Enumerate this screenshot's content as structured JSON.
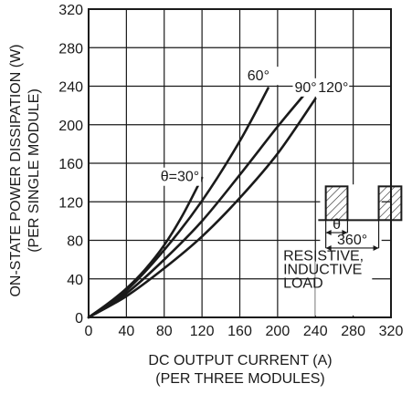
{
  "chart_data": {
    "type": "line",
    "title": "",
    "xlabel": "DC OUTPUT CURRENT (A)",
    "xlabel_sub": "(PER THREE MODULES)",
    "ylabel": "ON-STATE POWER DISSIPATION (W)",
    "ylabel_sub": "(PER SINGLE MODULE)",
    "xlim": [
      0,
      320
    ],
    "ylim": [
      0,
      320
    ],
    "xticks": [
      0,
      40,
      80,
      120,
      160,
      200,
      240,
      280,
      320
    ],
    "yticks": [
      0,
      40,
      80,
      120,
      160,
      200,
      240,
      280,
      320
    ],
    "grid": true,
    "series": [
      {
        "name": "θ=30°",
        "x": [
          0,
          20,
          40,
          60,
          80,
          100,
          120
        ],
        "y": [
          0,
          14,
          30,
          50,
          75,
          107,
          145
        ]
      },
      {
        "name": "60°",
        "x": [
          0,
          40,
          80,
          120,
          160,
          190
        ],
        "y": [
          0,
          28,
          70,
          121,
          183,
          238
        ]
      },
      {
        "name": "90°",
        "x": [
          0,
          40,
          80,
          120,
          160,
          200,
          228
        ],
        "y": [
          0,
          25,
          60,
          100,
          148,
          198,
          231
        ]
      },
      {
        "name": "120°",
        "x": [
          0,
          40,
          80,
          120,
          160,
          200,
          240
        ],
        "y": [
          0,
          22,
          51,
          84,
          124,
          170,
          227
        ]
      }
    ],
    "inset": {
      "theta_label": "θ",
      "period_label": "360°",
      "load_label_1": "RESISTIVE,",
      "load_label_2": "INDUCTIVE",
      "load_label_3": "LOAD"
    }
  }
}
